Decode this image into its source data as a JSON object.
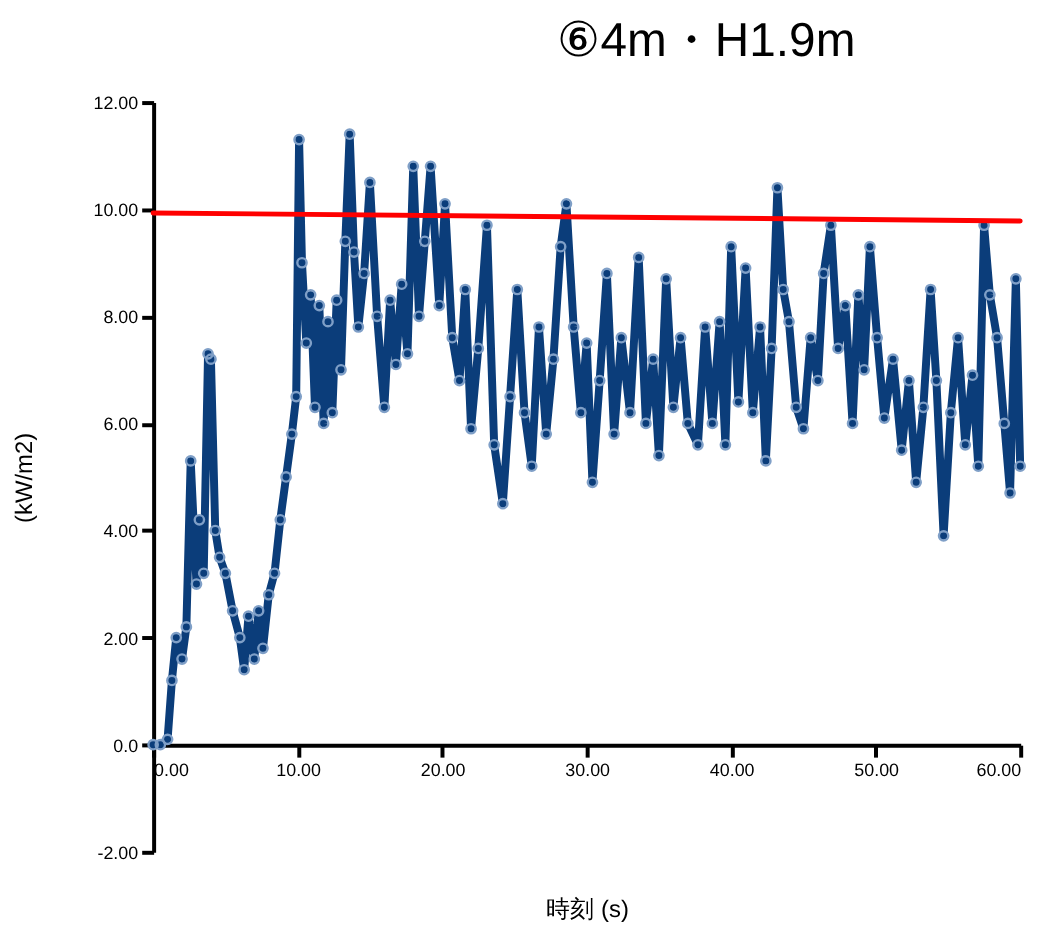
{
  "chart_data": {
    "type": "line",
    "title": "⑥4m・H1.9m",
    "xlabel": "時刻 (s)",
    "ylabel": "(kW/m2)",
    "xlim": [
      0,
      60
    ],
    "xticks": [
      {
        "value": 0,
        "label": "0.00"
      },
      {
        "value": 10,
        "label": "10.00"
      },
      {
        "value": 20,
        "label": "20.00"
      },
      {
        "value": 30,
        "label": "30.00"
      },
      {
        "value": 40,
        "label": "40.00"
      },
      {
        "value": 50,
        "label": "50.00"
      },
      {
        "value": 60,
        "label": "60.00"
      }
    ],
    "ylim": [
      -2,
      12
    ],
    "yticks": [
      {
        "value": -2,
        "label": "-2.00"
      },
      {
        "value": 0,
        "label": "0.0"
      },
      {
        "value": 2,
        "label": "2.00"
      },
      {
        "value": 4,
        "label": "4.00"
      },
      {
        "value": 6,
        "label": "6.00"
      },
      {
        "value": 8,
        "label": "8.00"
      },
      {
        "value": 10,
        "label": "10.00"
      },
      {
        "value": 12,
        "label": "12.00"
      }
    ],
    "grid": false,
    "marker": "circle",
    "line_style": "solid",
    "series": [
      {
        "color": "#0b3d7a",
        "x": [
          0,
          0.5,
          1,
          1.3,
          1.6,
          2,
          2.3,
          2.6,
          3,
          3.2,
          3.5,
          3.8,
          4,
          4.3,
          4.6,
          5,
          5.5,
          6,
          6.3,
          6.6,
          7,
          7.3,
          7.6,
          8,
          8.4,
          8.8,
          9.2,
          9.6,
          9.9,
          10.1,
          10.3,
          10.6,
          10.9,
          11.2,
          11.5,
          11.8,
          12.1,
          12.4,
          12.7,
          13,
          13.3,
          13.6,
          13.9,
          14.2,
          14.6,
          15,
          15.5,
          16,
          16.4,
          16.8,
          17.2,
          17.6,
          18,
          18.4,
          18.8,
          19.2,
          19.8,
          20.2,
          20.7,
          21.2,
          21.6,
          22,
          22.5,
          23.1,
          23.6,
          24.2,
          24.7,
          25.2,
          25.7,
          26.2,
          26.7,
          27.2,
          27.7,
          28.2,
          28.6,
          29.1,
          29.6,
          30,
          30.4,
          30.9,
          31.4,
          31.9,
          32.4,
          33,
          33.6,
          34.1,
          34.6,
          35,
          35.5,
          36,
          36.5,
          37,
          37.7,
          38.2,
          38.7,
          39.2,
          39.6,
          40,
          40.5,
          41,
          41.5,
          42,
          42.4,
          42.8,
          43.2,
          43.6,
          44,
          44.5,
          45,
          45.5,
          46,
          46.4,
          46.9,
          47.4,
          47.9,
          48.4,
          48.8,
          49.2,
          49.6,
          50.1,
          50.6,
          51.2,
          51.8,
          52.3,
          52.8,
          53.3,
          53.8,
          54.2,
          54.7,
          55.2,
          55.7,
          56.2,
          56.7,
          57.1,
          57.5,
          57.9,
          58.4,
          58.9,
          59.3,
          59.7,
          60
        ],
        "values": [
          0,
          0,
          0.1,
          1.2,
          2.0,
          1.6,
          2.2,
          5.3,
          3.0,
          4.2,
          3.2,
          7.3,
          7.2,
          4.0,
          3.5,
          3.2,
          2.5,
          2.0,
          1.4,
          2.4,
          1.6,
          2.5,
          1.8,
          2.8,
          3.2,
          4.2,
          5.0,
          5.8,
          6.5,
          11.3,
          9.0,
          7.5,
          8.4,
          6.3,
          8.2,
          6.0,
          7.9,
          6.2,
          8.3,
          7.0,
          9.4,
          11.4,
          9.2,
          7.8,
          8.8,
          10.5,
          8.0,
          6.3,
          8.3,
          7.1,
          8.6,
          7.3,
          10.8,
          8.0,
          9.4,
          10.8,
          8.2,
          10.1,
          7.6,
          6.8,
          8.5,
          5.9,
          7.4,
          9.7,
          5.6,
          4.5,
          6.5,
          8.5,
          6.2,
          5.2,
          7.8,
          5.8,
          7.2,
          9.3,
          10.1,
          7.8,
          6.2,
          7.5,
          4.9,
          6.8,
          8.8,
          5.8,
          7.6,
          6.2,
          9.1,
          6.0,
          7.2,
          5.4,
          8.7,
          6.3,
          7.6,
          6.0,
          5.6,
          7.8,
          6.0,
          7.9,
          5.6,
          9.3,
          6.4,
          8.9,
          6.2,
          7.8,
          5.3,
          7.4,
          10.4,
          8.5,
          7.9,
          6.3,
          5.9,
          7.6,
          6.8,
          8.8,
          9.7,
          7.4,
          8.2,
          6.0,
          8.4,
          7.0,
          9.3,
          7.6,
          6.1,
          7.2,
          5.5,
          6.8,
          4.9,
          6.3,
          8.5,
          6.8,
          3.9,
          6.2,
          7.6,
          5.6,
          6.9,
          5.2,
          9.7,
          8.4,
          7.6,
          6.0,
          4.7,
          8.7,
          5.2
        ]
      },
      {
        "type": "line",
        "color": "#ff0000",
        "marker": "none",
        "x": [
          0,
          60
        ],
        "values": [
          9.93,
          9.78
        ]
      }
    ]
  }
}
